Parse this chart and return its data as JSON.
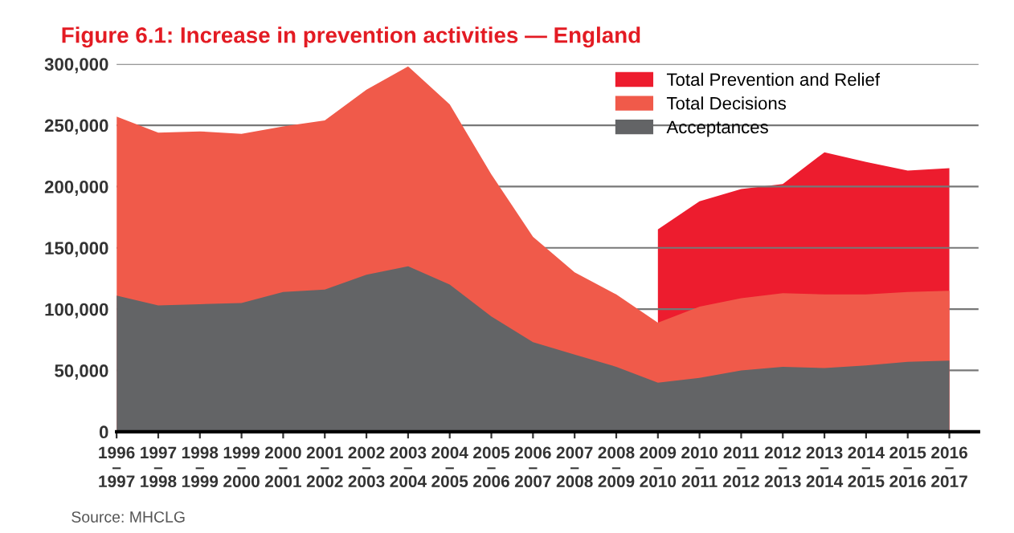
{
  "chart_data": {
    "type": "area",
    "title": "Figure 6.1: Increase in prevention activities — England",
    "categories": [
      "1996\n–\n1997",
      "1997\n–\n1998",
      "1998\n–\n1999",
      "1999\n–\n2000",
      "2000\n–\n2001",
      "2001\n–\n2002",
      "2002\n–\n2003",
      "2003\n–\n2004",
      "2004\n–\n2005",
      "2005\n–\n2006",
      "2006\n–\n2007",
      "2007\n–\n2008",
      "2008\n–\n2009",
      "2009\n–\n2010",
      "2010\n–\n2011",
      "2011\n–\n2012",
      "2012\n–\n2013",
      "2013\n–\n2014",
      "2014\n–\n2015",
      "2015\n–\n2016",
      "2016\n–\n2017"
    ],
    "series": [
      {
        "name": "Total Prevention and Relief",
        "color": "#ed1c2e",
        "values": [
          null,
          null,
          null,
          null,
          null,
          null,
          null,
          null,
          null,
          null,
          null,
          null,
          null,
          165000,
          188000,
          198000,
          202000,
          228000,
          220000,
          213000,
          215000
        ]
      },
      {
        "name": "Total Decisions",
        "color": "#f05a4a",
        "values": [
          257000,
          244000,
          245000,
          243000,
          249000,
          254000,
          279000,
          298000,
          267000,
          210000,
          159000,
          130000,
          112000,
          89000,
          102000,
          109000,
          113000,
          112000,
          112000,
          114000,
          115000
        ]
      },
      {
        "name": "Acceptances",
        "color": "#636466",
        "values": [
          111000,
          103000,
          104000,
          105000,
          114000,
          116000,
          128000,
          135000,
          120000,
          94000,
          73000,
          63000,
          53000,
          40000,
          44000,
          50000,
          53000,
          52000,
          54000,
          57000,
          58000
        ]
      }
    ],
    "ylim": [
      0,
      300000
    ],
    "yticks": [
      {
        "value": 0,
        "label": "0"
      },
      {
        "value": 50000,
        "label": "50,000"
      },
      {
        "value": 100000,
        "label": "100,000"
      },
      {
        "value": 150000,
        "label": "150,000"
      },
      {
        "value": 200000,
        "label": "200,000"
      },
      {
        "value": 250000,
        "label": "250,000"
      },
      {
        "value": 300000,
        "label": "300,000"
      }
    ],
    "grid": "y",
    "legend": "top right",
    "annotations": [
      "Source: MHCLG"
    ]
  }
}
